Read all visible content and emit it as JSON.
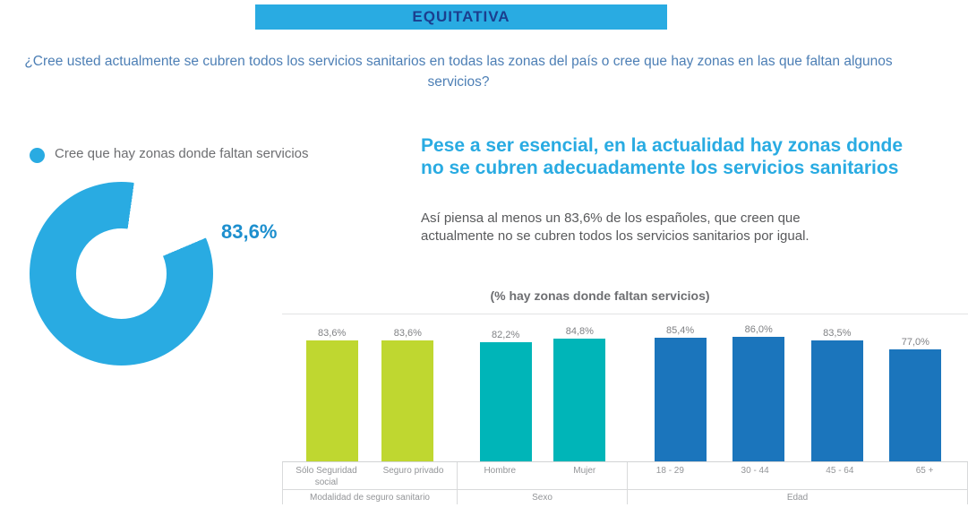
{
  "header": {
    "brand": "EQUITATIVA",
    "question": "¿Cree usted actualmente se cubren todos los servicios sanitarios en todas las zonas del país o cree que hay zonas  en las que faltan algunos servicios?"
  },
  "right_panel": {
    "headline": "Pese a ser esencial, en la actualidad hay zonas donde no se cubren adecuadamente los servicios sanitarios",
    "body": "Así piensa al menos un 83,6% de los españoles, que creen que actualmente no se cubren todos los servicios sanitarios por igual."
  },
  "colors": {
    "accent_cyan": "#29ABE2",
    "banner_text": "#1B3E8E",
    "green_bar": "#BFD730",
    "teal_bar": "#00B5B8",
    "blue_bar": "#1B75BC"
  },
  "chart_data": [
    {
      "type": "donut",
      "label": "Cree que hay zonas donde faltan servicios",
      "value": 83.6,
      "value_label": "83,6%",
      "color": "#29ABE2"
    },
    {
      "type": "bar",
      "title": "(% hay zonas donde faltan servicios)",
      "ylim": [
        0,
        100
      ],
      "grid": false,
      "legend_position": "none",
      "groups": [
        {
          "label": "Modalidad de seguro sanitario",
          "color": "#BFD730",
          "bars": [
            {
              "label": "Sólo Seguridad social",
              "value": 83.6,
              "value_label": "83,6%"
            },
            {
              "label": "Seguro privado",
              "value": 83.6,
              "value_label": "83,6%"
            }
          ]
        },
        {
          "label": "Sexo",
          "color": "#00B5B8",
          "bars": [
            {
              "label": "Hombre",
              "value": 82.2,
              "value_label": "82,2%"
            },
            {
              "label": "Mujer",
              "value": 84.8,
              "value_label": "84,8%"
            }
          ]
        },
        {
          "label": "Edad",
          "color": "#1B75BC",
          "bars": [
            {
              "label": "18 - 29",
              "value": 85.4,
              "value_label": "85,4%"
            },
            {
              "label": "30 - 44",
              "value": 86.0,
              "value_label": "86,0%"
            },
            {
              "label": "45 - 64",
              "value": 83.5,
              "value_label": "83,5%"
            },
            {
              "label": "65 +",
              "value": 77.0,
              "value_label": "77,0%"
            }
          ]
        }
      ]
    }
  ]
}
